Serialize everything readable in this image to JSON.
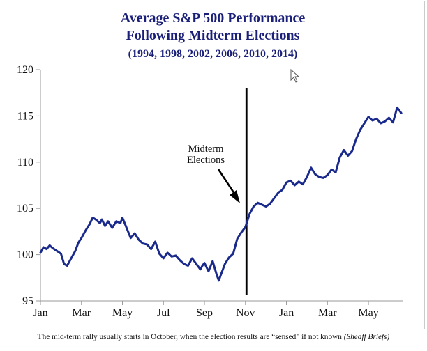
{
  "chart_data": {
    "type": "line",
    "title": "Average S&P 500 Performance",
    "title_line2": "Following Midterm Elections",
    "subtitle": "(1994, 1998, 2002, 2006, 2010, 2014)",
    "xlabel": "",
    "ylabel": "",
    "x_tick_labels": [
      "Jan",
      "Mar",
      "May",
      "Jul",
      "Sep",
      "Nov",
      "Jan",
      "Mar",
      "May"
    ],
    "x_tick_months": [
      0,
      2,
      4,
      6,
      8,
      10,
      12,
      14,
      16
    ],
    "xlim": [
      0,
      17.7
    ],
    "ylim": [
      95,
      120
    ],
    "y_ticks": [
      95,
      100,
      105,
      110,
      115,
      120
    ],
    "grid": false,
    "line_color": "#1a2a8c",
    "marker_color": "#000000",
    "election_month": 10.05,
    "annotation": {
      "line1": "Midterm",
      "line2": "Elections"
    },
    "series": [
      {
        "x": [
          0.0,
          0.15,
          0.3,
          0.45,
          0.6,
          0.8,
          1.0,
          1.15,
          1.3,
          1.5,
          1.7,
          1.85,
          2.0,
          2.2,
          2.4,
          2.55,
          2.7,
          2.9,
          3.0,
          3.15,
          3.3,
          3.5,
          3.7,
          3.9,
          4.0,
          4.2,
          4.4,
          4.6,
          4.8,
          5.0,
          5.2,
          5.4,
          5.6,
          5.8,
          6.0,
          6.2,
          6.4,
          6.6,
          6.8,
          7.0,
          7.2,
          7.4,
          7.6,
          7.8,
          7.9,
          8.0,
          8.2,
          8.4,
          8.6,
          8.7,
          8.8,
          9.0,
          9.2,
          9.4,
          9.6,
          9.8,
          10.0,
          10.2,
          10.4,
          10.6,
          10.8,
          11.0,
          11.2,
          11.4,
          11.6,
          11.8,
          12.0,
          12.2,
          12.4,
          12.6,
          12.8,
          13.0,
          13.2,
          13.4,
          13.6,
          13.8,
          14.0,
          14.2,
          14.4,
          14.6,
          14.8,
          15.0,
          15.2,
          15.4,
          15.6,
          15.8,
          16.0,
          16.2,
          16.4,
          16.6,
          16.8,
          17.0,
          17.2,
          17.4,
          17.6
        ],
        "values": [
          100.2,
          100.8,
          100.6,
          101.0,
          100.7,
          100.4,
          100.1,
          99.0,
          98.8,
          99.6,
          100.4,
          101.3,
          101.8,
          102.6,
          103.3,
          104.0,
          103.8,
          103.4,
          103.8,
          103.1,
          103.6,
          102.9,
          103.6,
          103.4,
          104.0,
          102.9,
          101.8,
          102.3,
          101.6,
          101.2,
          101.1,
          100.6,
          101.4,
          100.1,
          99.6,
          100.2,
          99.8,
          99.9,
          99.4,
          99.0,
          98.8,
          99.6,
          99.0,
          98.4,
          98.8,
          99.1,
          98.2,
          99.3,
          97.8,
          97.2,
          97.8,
          99.0,
          99.7,
          100.1,
          101.7,
          102.4,
          103.0,
          104.4,
          105.2,
          105.6,
          105.4,
          105.2,
          105.5,
          106.1,
          106.7,
          107.0,
          107.8,
          108.0,
          107.5,
          107.9,
          107.6,
          108.4,
          109.4,
          108.7,
          108.4,
          108.3,
          108.6,
          109.2,
          108.9,
          110.5,
          111.3,
          110.7,
          111.2,
          112.5,
          113.5,
          114.2,
          114.9,
          114.5,
          114.7,
          114.2,
          114.4,
          114.8,
          114.3,
          115.9,
          115.3
        ]
      }
    ]
  },
  "caption": {
    "main": "The mid-term rally usually starts in October, when the election results are “sensed” if not known",
    "source": "(Sheaff Briefs)"
  }
}
